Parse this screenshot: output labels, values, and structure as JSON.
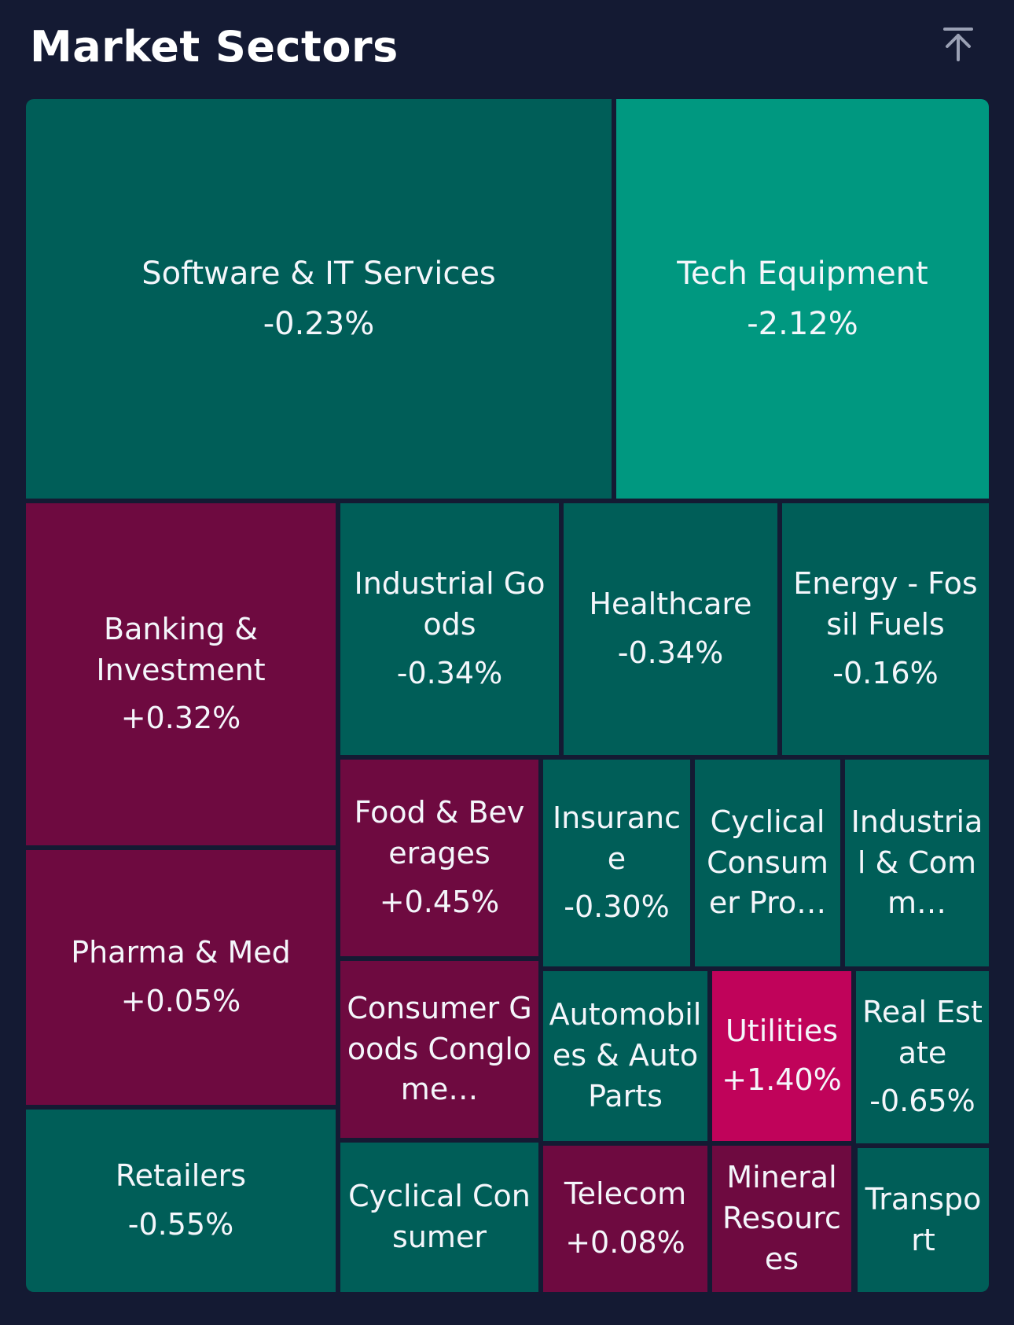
{
  "header": {
    "title": "Market Sectors",
    "collapse_icon": "collapse-to-top-icon"
  },
  "colors": {
    "background": "#141a33",
    "negative_small": "#005e58",
    "negative_large": "#009880",
    "positive_small": "#6e0a40",
    "positive_large": "#c0035a"
  },
  "chart_data": {
    "type": "treemap",
    "title": "Market Sectors",
    "sectors": [
      {
        "name": "Software & IT Services",
        "change": "-0.23%",
        "value": -0.23,
        "display_name": "Software & IT Services"
      },
      {
        "name": "Tech Equipment",
        "change": "-2.12%",
        "value": -2.12,
        "display_name": "Tech Equipment"
      },
      {
        "name": "Banking & Investment",
        "change": "+0.32%",
        "value": 0.32,
        "display_name": "Banking & Investment"
      },
      {
        "name": "Industrial Goods",
        "change": "-0.34%",
        "value": -0.34,
        "display_name": "Industrial Goods"
      },
      {
        "name": "Healthcare",
        "change": "-0.34%",
        "value": -0.34,
        "display_name": "Healthcare"
      },
      {
        "name": "Energy - Fossil Fuels",
        "change": "-0.16%",
        "value": -0.16,
        "display_name": "Energy - Fossil Fuels"
      },
      {
        "name": "Pharma & Med",
        "change": "+0.05%",
        "value": 0.05,
        "display_name": "Pharma & Med"
      },
      {
        "name": "Food & Beverages",
        "change": "+0.45%",
        "value": 0.45,
        "display_name": "Food & Beverages"
      },
      {
        "name": "Insurance",
        "change": "-0.30%",
        "value": -0.3,
        "display_name": "Insurance"
      },
      {
        "name": "Cyclical Consumer Products",
        "change": "",
        "value": null,
        "display_name": "Cyclical Consumer Pro…"
      },
      {
        "name": "Industrial & Commercial",
        "change": "",
        "value": null,
        "display_name": "Industrial & Comm…"
      },
      {
        "name": "Consumer Goods Conglomerates",
        "change": "",
        "value": null,
        "display_name": "Consumer Goods Conglome…"
      },
      {
        "name": "Automobiles & Auto Parts",
        "change": "",
        "value": null,
        "display_name": "Automobiles & Auto Parts"
      },
      {
        "name": "Utilities",
        "change": "+1.40%",
        "value": 1.4,
        "display_name": "Utilities"
      },
      {
        "name": "Real Estate",
        "change": "-0.65%",
        "value": -0.65,
        "display_name": "Real Estate"
      },
      {
        "name": "Retailers",
        "change": "-0.55%",
        "value": -0.55,
        "display_name": "Retailers"
      },
      {
        "name": "Cyclical Consumer",
        "change": "",
        "value": null,
        "display_name": "Cyclical Consumer"
      },
      {
        "name": "Telecom",
        "change": "+0.08%",
        "value": 0.08,
        "display_name": "Telecom"
      },
      {
        "name": "Mineral Resources",
        "change": "",
        "value": null,
        "display_name": "Mineral Resources"
      },
      {
        "name": "Transport",
        "change": "",
        "value": null,
        "display_name": "Transport"
      }
    ]
  }
}
